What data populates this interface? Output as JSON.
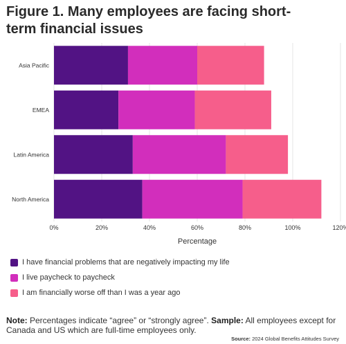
{
  "title": "Figure 1. Many employees are facing short-term financial issues",
  "title_line1": "Figure 1. Many employees are facing short-",
  "title_line2": "term financial issues",
  "note": {
    "label1": "Note:",
    "text1": " Percentages indicate “agree” or “strongly agree”. ",
    "label2": "Sample:",
    "text2": " All employees except for Canada and US which are full-time employees only."
  },
  "source": {
    "label": "Source:",
    "text": " 2024 Global Benefits Attitudes Survey"
  },
  "chart_data": {
    "type": "bar",
    "orientation": "horizontal",
    "stacked": true,
    "categories": [
      "Asia Pacific",
      "EMEA",
      "Latin America",
      "North America"
    ],
    "series": [
      {
        "name": "I have financial problems that are negatively impacting my life",
        "values": [
          31,
          27,
          33,
          37
        ],
        "color": "#521384"
      },
      {
        "name": "I live paycheck to paycheck",
        "values": [
          29,
          32,
          39,
          42
        ],
        "color": "#d22ebc"
      },
      {
        "name": "I am financially worse off than I was a year ago",
        "values": [
          28,
          32,
          26,
          33
        ],
        "color": "#f65e8b"
      }
    ],
    "xlabel": "Percentage",
    "ylabel": "",
    "xlim": [
      0,
      120
    ],
    "xticks": [
      0,
      20,
      40,
      60,
      80,
      100,
      120
    ],
    "xtick_labels": [
      "0%",
      "20%",
      "40%",
      "60%",
      "80%",
      "100%",
      "120%"
    ],
    "grid": true,
    "legend_position": "bottom-left"
  }
}
